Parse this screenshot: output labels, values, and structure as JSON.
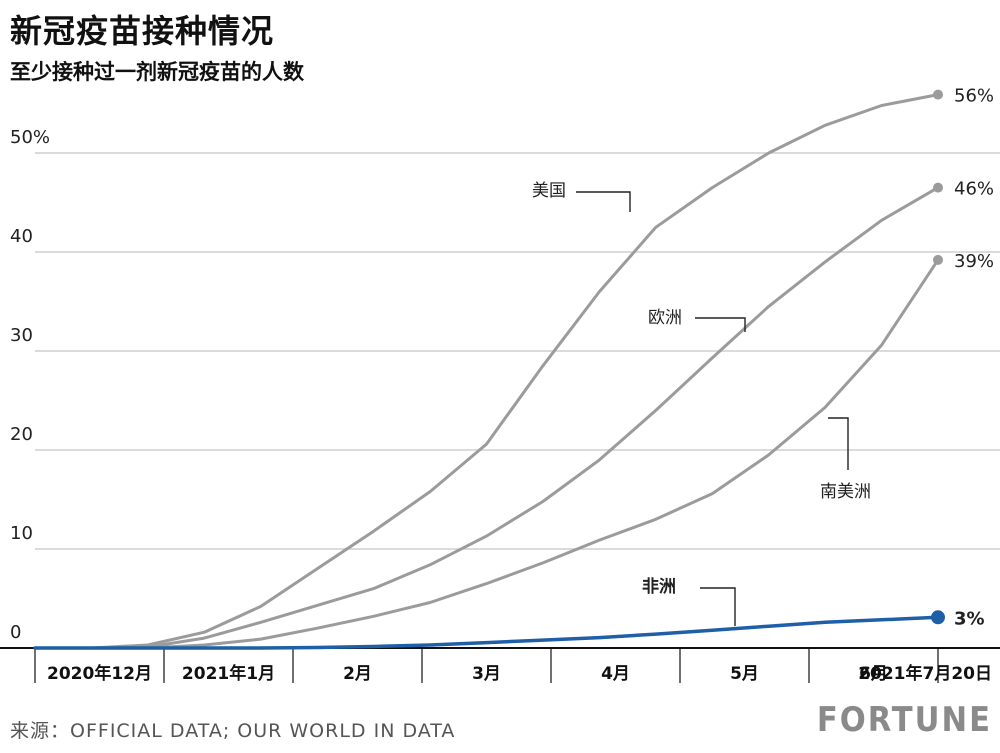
{
  "title": "新冠疫苗接种情况",
  "subtitle": "至少接种过一剂新冠疫苗的人数",
  "source": "来源：OFFICIAL DATA; OUR WORLD IN DATA",
  "brand": "FORTUNE",
  "chart_data": {
    "type": "line",
    "title": "新冠疫苗接种情况",
    "subtitle": "至少接种过一剂新冠疫苗的人数",
    "ylim": [
      0,
      55
    ],
    "y_ticks": [
      "0",
      "10",
      "20",
      "30",
      "40",
      "50%"
    ],
    "y_tick_values": [
      0,
      10,
      20,
      30,
      40,
      50
    ],
    "x_categories": [
      "2020年12月",
      "2021年1月",
      "2月",
      "3月",
      "4月",
      "5月",
      "6月",
      "2021年7月20日"
    ],
    "grid": true,
    "x": [
      0,
      0.5,
      1,
      1.5,
      2,
      2.5,
      3,
      3.5,
      4,
      4.5,
      5,
      5.5,
      6,
      6.5,
      7,
      7.5,
      8
    ],
    "series": [
      {
        "name": "美国",
        "color": "#9b9b9b",
        "end_label": "56%",
        "values": [
          0,
          0,
          0.3,
          1.6,
          4.2,
          8.0,
          11.8,
          15.8,
          20.6,
          28.5,
          36.0,
          42.5,
          46.5,
          50.0,
          52.8,
          54.8,
          55.9
        ]
      },
      {
        "name": "欧洲",
        "color": "#9b9b9b",
        "end_label": "46%",
        "values": [
          0,
          0,
          0.1,
          1.0,
          2.6,
          4.3,
          6.0,
          8.4,
          11.3,
          14.8,
          19.0,
          24.0,
          29.3,
          34.5,
          39.0,
          43.2,
          46.5
        ]
      },
      {
        "name": "南美洲",
        "color": "#9b9b9b",
        "end_label": "39%",
        "values": [
          0,
          0,
          0,
          0.3,
          0.9,
          2.0,
          3.2,
          4.6,
          6.5,
          8.6,
          10.9,
          13.0,
          15.6,
          19.5,
          24.3,
          30.6,
          39.2
        ]
      },
      {
        "name": "非洲",
        "color": "#1f5fa8",
        "end_label": "3%",
        "values": [
          0,
          0,
          0,
          0,
          0,
          0.05,
          0.15,
          0.3,
          0.55,
          0.8,
          1.05,
          1.4,
          1.8,
          2.2,
          2.6,
          2.85,
          3.1
        ]
      }
    ]
  }
}
